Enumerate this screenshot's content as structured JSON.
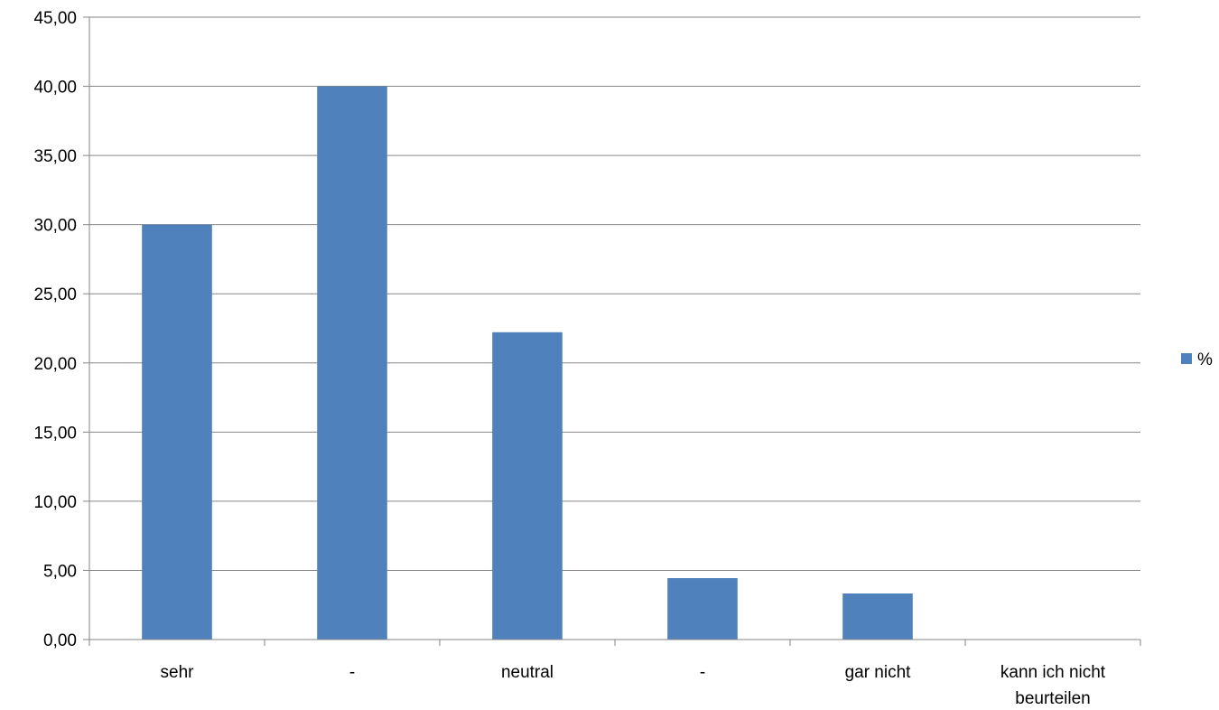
{
  "chart_data": {
    "type": "bar",
    "title": "",
    "xlabel": "",
    "ylabel": "",
    "categories": [
      [
        "sehr"
      ],
      [
        "-"
      ],
      [
        "neutral"
      ],
      [
        "-"
      ],
      [
        "gar nicht"
      ],
      [
        "kann ich nicht",
        "beurteilen"
      ]
    ],
    "series": [
      {
        "name": "%",
        "color": "#4f81bd",
        "values": [
          30.0,
          40.0,
          22.22,
          4.44,
          3.33,
          0.0
        ]
      }
    ],
    "ylim": [
      0,
      45
    ],
    "yticks": [
      0,
      5,
      10,
      15,
      20,
      25,
      30,
      35,
      40,
      45
    ],
    "ytick_labels": [
      "0,00",
      "5,00",
      "10,00",
      "15,00",
      "20,00",
      "25,00",
      "30,00",
      "35,00",
      "40,00",
      "45,00"
    ],
    "grid": true,
    "gridline_color": "#868686",
    "legend": {
      "position": "right",
      "entries": [
        "%"
      ]
    }
  }
}
